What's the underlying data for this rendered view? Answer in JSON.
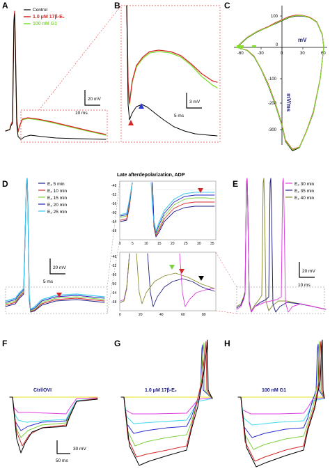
{
  "figure": {
    "panels": {
      "A": "A",
      "B": "B",
      "C": "C",
      "D": "D",
      "E": "E",
      "F": "F",
      "G": "G",
      "H": "H"
    },
    "colors": {
      "control": "#000000",
      "estradiol": "#d62728",
      "g1": "#7fe030",
      "e2_5": "#1f1f8f",
      "e2_10": "#d62728",
      "e2_15": "#7fd040",
      "e2_20": "#2020c0",
      "e2_25": "#40c8f0",
      "e2_30": "#e040e0",
      "e2_35": "#202080",
      "e2_40": "#8a8a30",
      "steps": [
        "#000000",
        "#d62728",
        "#7fd040",
        "#2a2ad0",
        "#40d8f0",
        "#e040e0",
        "#e8e020"
      ],
      "marker_red": "#d62728",
      "marker_blue": "#2a3ad0",
      "marker_green": "#7fd040",
      "dashed_box_red": "#e04040",
      "dashed_box_grey": "#888888"
    }
  },
  "chart_data": [
    {
      "panel": "A",
      "type": "line",
      "legend": [
        "Control",
        "1.0 μM 17β-E₂",
        "100 nM G1"
      ],
      "scale_bar": {
        "voltage": "20 mV",
        "time": "10 ms"
      }
    },
    {
      "panel": "B",
      "type": "line",
      "scale_bar": {
        "voltage": "3 mV",
        "time": "5 ms"
      }
    },
    {
      "panel": "C",
      "type": "line",
      "xlabel": "mV",
      "ylabel": "mV/ms",
      "x_ticks": [
        "-60",
        "-30",
        "0",
        "30",
        "60"
      ],
      "y_ticks": [
        "100",
        "0",
        "-100",
        "-200",
        "-300"
      ],
      "xlim": [
        -70,
        60
      ],
      "ylim": [
        -330,
        120
      ],
      "series": [
        {
          "name": "Control",
          "x": [
            -65,
            -60,
            -50,
            -35,
            -20,
            -10,
            0,
            10,
            20,
            30,
            40,
            50,
            58,
            60,
            55,
            45,
            35,
            25,
            15,
            5,
            0,
            -10,
            -20,
            -30,
            -40,
            -50,
            -60,
            -65
          ],
          "y": [
            0,
            10,
            30,
            50,
            65,
            75,
            85,
            95,
            100,
            100,
            95,
            80,
            40,
            0,
            -100,
            -210,
            -270,
            -320,
            -330,
            -300,
            -250,
            -180,
            -120,
            -70,
            -30,
            -10,
            -3,
            0
          ]
        },
        {
          "name": "1.0 μM 17β-E₂",
          "x": [
            -65,
            -60,
            -50,
            -35,
            -20,
            -10,
            0,
            10,
            20,
            30,
            40,
            50,
            58,
            60,
            55,
            45,
            35,
            25,
            15,
            5,
            0,
            -10,
            -20,
            -30,
            -40,
            -50,
            -60,
            -65
          ],
          "y": [
            0,
            12,
            32,
            52,
            66,
            78,
            88,
            98,
            103,
            102,
            96,
            82,
            42,
            0,
            -98,
            -205,
            -268,
            -318,
            -325,
            -295,
            -245,
            -175,
            -115,
            -68,
            -28,
            -9,
            -3,
            0
          ]
        },
        {
          "name": "100 nM G1",
          "x": [
            -65,
            -60,
            -50,
            -35,
            -20,
            -10,
            0,
            10,
            20,
            30,
            40,
            50,
            58,
            60,
            55,
            45,
            35,
            25,
            15,
            5,
            0,
            -10,
            -20,
            -30,
            -40,
            -50,
            -60,
            -65
          ],
          "y": [
            0,
            11,
            31,
            51,
            64,
            76,
            86,
            96,
            101,
            101,
            94,
            81,
            41,
            0,
            -99,
            -208,
            -270,
            -319,
            -327,
            -298,
            -248,
            -178,
            -118,
            -69,
            -29,
            -10,
            -3,
            0
          ]
        }
      ]
    },
    {
      "panel": "D",
      "type": "line",
      "title": "Late afterdepolarization, ADP",
      "legend": [
        "E₂ 5 min",
        "E₂ 10 min",
        "E₂ 15 min",
        "E₂ 20 min",
        "E₂ 25 min"
      ],
      "scale_bar": {
        "voltage": "20 mV",
        "time": "5 ms"
      }
    },
    {
      "panel": "D-inset-top",
      "type": "line",
      "x_ticks": [
        "0",
        "5",
        "10",
        "15",
        "20",
        "25",
        "30",
        "35"
      ],
      "y_ticks": [
        "-48",
        "-52",
        "-56",
        "-60",
        "-64",
        "-68"
      ],
      "xlim": [
        0,
        35
      ],
      "ylim": [
        -68,
        -46
      ]
    },
    {
      "panel": "E-inset-bottom",
      "type": "line",
      "x_ticks": [
        "0",
        "20",
        "40",
        "60",
        "80"
      ],
      "y_ticks": [
        "-48",
        "-52",
        "-56",
        "-60",
        "-64",
        "-68"
      ],
      "xlim": [
        0,
        90
      ],
      "ylim": [
        -68,
        -46
      ]
    },
    {
      "panel": "E",
      "type": "line",
      "legend": [
        "E₂ 30 min",
        "E₂ 35 min",
        "E₂ 40 min"
      ],
      "scale_bar": {
        "voltage": "20 mV",
        "time": "10 ms"
      }
    },
    {
      "panel": "F",
      "type": "line",
      "label": "Ctrl/OVI",
      "scale_bar": {
        "voltage": "30 mV",
        "time": "50 ms"
      }
    },
    {
      "panel": "G",
      "type": "line",
      "label": "1.0 μM 17β-E₂"
    },
    {
      "panel": "H",
      "type": "line",
      "label": "100 nM G1"
    }
  ]
}
